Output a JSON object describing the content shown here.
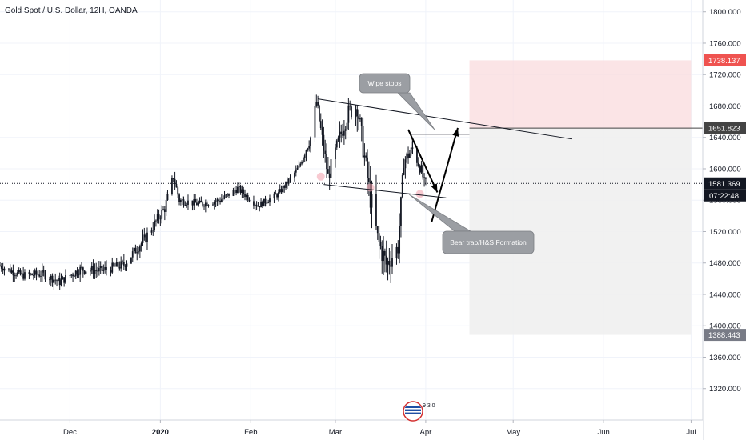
{
  "chart_data": {
    "type": "candlestick",
    "title": "Gold Spot / U.S. Dollar, 12H, OANDA",
    "ylim": [
      1280,
      1815
    ],
    "y_ticks": [
      1320,
      1360,
      1400,
      1440,
      1480,
      1520,
      1560,
      1600,
      1640,
      1680,
      1720,
      1760,
      1800
    ],
    "y_tick_labels": [
      "1320.000",
      "1360.000",
      "1400.000",
      "1440.000",
      "1480.000",
      "1520.000",
      "1560.000",
      "1600.000",
      "1640.000",
      "1680.000",
      "1720.000",
      "1760.000",
      "1800.000"
    ],
    "x_ticks": [
      "Dec",
      "2020",
      "Feb",
      "Mar",
      "Apr",
      "May",
      "Jun",
      "Jul"
    ],
    "x_tick_dates": [
      "2019-12-01",
      "2020-01-01",
      "2020-02-01",
      "2020-03-01",
      "2020-04-01",
      "2020-05-01",
      "2020-06-01",
      "2020-07-01"
    ],
    "x_range": [
      "2019-11-07",
      "2020-07-05"
    ],
    "grid": true,
    "price_labels": [
      {
        "value": 1738.137,
        "text": "1738.137",
        "color": "#ef5350"
      },
      {
        "value": 1651.823,
        "text": "1651.823",
        "color": "#444444"
      },
      {
        "value": 1581.369,
        "text": "1581.369",
        "color": "#131722"
      },
      {
        "value": 1388.443,
        "text": "1388.443",
        "color": "#787b86"
      }
    ],
    "countdown": "07:22:48",
    "last_price": 1581.369,
    "position": {
      "start": "2020-04-16",
      "end": "2020-07-01",
      "entry": 1651.823,
      "stop": 1738.137,
      "target": 1388.443
    },
    "trendlines": [
      {
        "start": [
          "2020-02-24",
          1689
        ],
        "end": [
          "2020-05-21",
          1638
        ]
      },
      {
        "start": [
          "2020-02-26",
          1580
        ],
        "end": [
          "2020-04-08",
          1563
        ]
      },
      {
        "start": [
          "2020-03-27",
          1644
        ],
        "end": [
          "2020-04-16",
          1644
        ]
      },
      {
        "start": [
          "2020-03-27",
          1644
        ],
        "end": [
          "2020-03-27",
          1625
        ]
      }
    ],
    "arrows": [
      {
        "start": [
          "2020-03-26",
          1650
        ],
        "end": [
          "2020-04-05",
          1570
        ]
      },
      {
        "start": [
          "2020-04-03",
          1532
        ],
        "end": [
          "2020-04-12",
          1652
        ]
      }
    ],
    "annotations": [
      {
        "text": "Wipe stops",
        "anchor": [
          "2020-04-07",
          1649
        ]
      },
      {
        "text": "Bear trap/H&S Formation",
        "anchor": [
          "2020-03-30",
          1568
        ]
      }
    ],
    "highlights": [
      {
        "date": "2020-02-25",
        "price": 1590
      },
      {
        "date": "2020-03-13",
        "price": 1576
      },
      {
        "date": "2020-03-30",
        "price": 1568
      }
    ],
    "anchors": [
      [
        "2019-11-07",
        1477
      ],
      [
        "2019-11-15",
        1464
      ],
      [
        "2019-11-22",
        1466
      ],
      [
        "2019-11-28",
        1456
      ],
      [
        "2019-12-05",
        1472
      ],
      [
        "2019-12-12",
        1470
      ],
      [
        "2019-12-20",
        1478
      ],
      [
        "2019-12-27",
        1510
      ],
      [
        "2020-01-03",
        1550
      ],
      [
        "2020-01-06",
        1590
      ],
      [
        "2020-01-08",
        1560
      ],
      [
        "2020-01-15",
        1555
      ],
      [
        "2020-01-22",
        1560
      ],
      [
        "2020-01-28",
        1575
      ],
      [
        "2020-02-04",
        1553
      ],
      [
        "2020-02-11",
        1568
      ],
      [
        "2020-02-18",
        1602
      ],
      [
        "2020-02-22",
        1640
      ],
      [
        "2020-02-24",
        1685
      ],
      [
        "2020-02-28",
        1590
      ],
      [
        "2020-03-03",
        1640
      ],
      [
        "2020-03-06",
        1672
      ],
      [
        "2020-03-09",
        1680
      ],
      [
        "2020-03-13",
        1575
      ],
      [
        "2020-03-16",
        1510
      ],
      [
        "2020-03-19",
        1478
      ],
      [
        "2020-03-23",
        1500
      ],
      [
        "2020-03-25",
        1610
      ],
      [
        "2020-03-28",
        1625
      ],
      [
        "2020-03-31",
        1598
      ],
      [
        "2020-04-01",
        1581.369
      ]
    ],
    "volatility": [
      [
        "2019-11-07",
        10
      ],
      [
        "2020-01-03",
        14
      ],
      [
        "2020-01-08",
        10
      ],
      [
        "2020-02-18",
        8
      ],
      [
        "2020-02-22",
        18
      ],
      [
        "2020-03-06",
        22
      ],
      [
        "2020-03-13",
        34
      ],
      [
        "2020-03-19",
        30
      ],
      [
        "2020-03-25",
        18
      ],
      [
        "2020-04-01",
        14
      ]
    ],
    "logo_text": "9 3 0"
  },
  "colors": {
    "candle": "#131722",
    "grid": "#f0f3fa",
    "axis_text": "#131722",
    "stop_zone": "#f9dbdd",
    "target_zone": "#efeff0",
    "annotation_bg": "#9b9ea3",
    "annotation_text": "#ffffff"
  }
}
